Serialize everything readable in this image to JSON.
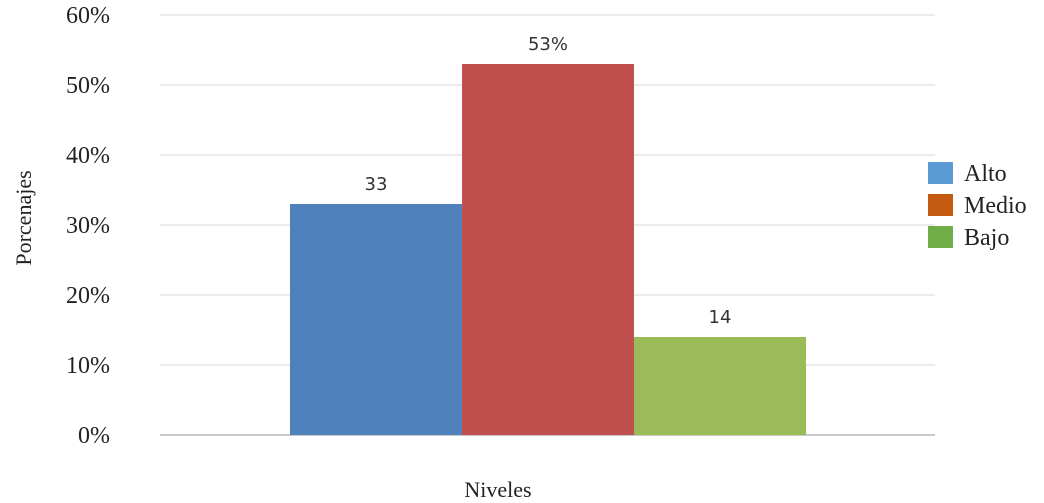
{
  "chart_data": {
    "type": "bar",
    "xlabel": "Niveles",
    "ylabel": "Porcenajes",
    "ylim": [
      0,
      60
    ],
    "yticks": [
      0,
      10,
      20,
      30,
      40,
      50,
      60
    ],
    "ytick_labels": [
      "0%",
      "10%",
      "20%",
      "30%",
      "40%",
      "50%",
      "60%"
    ],
    "grid": true,
    "legend_position": "right",
    "series": [
      {
        "name": "Alto",
        "value": 33,
        "label": "33",
        "bar_color": "#4f81bd",
        "legend_color": "#5b9bd5"
      },
      {
        "name": "Medio",
        "value": 53,
        "label": "53%",
        "bar_color": "#c0504d",
        "legend_color": "#c55a11"
      },
      {
        "name": "Bajo",
        "value": 14,
        "label": "14",
        "bar_color": "#9bbb59",
        "legend_color": "#70ad47"
      }
    ]
  }
}
